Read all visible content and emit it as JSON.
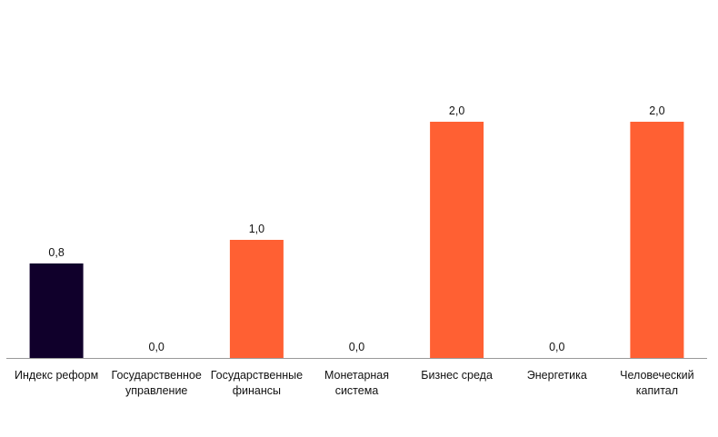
{
  "chart_data": {
    "type": "bar",
    "title": "",
    "xlabel": "",
    "ylabel": "",
    "categories": [
      [
        "Индекс реформ"
      ],
      [
        "Государственное",
        "управление"
      ],
      [
        "Государственные",
        "финансы"
      ],
      [
        "Монетарная",
        "система"
      ],
      [
        "Бизнес среда"
      ],
      [
        "Энергетика"
      ],
      [
        "Человеческий",
        "капитал"
      ]
    ],
    "values": [
      0.8,
      0.0,
      1.0,
      0.0,
      2.0,
      0.0,
      2.0
    ],
    "value_labels": [
      "0,8",
      "0,0",
      "1,0",
      "0,0",
      "2,0",
      "0,0",
      "2,0"
    ],
    "ylim": [
      0,
      2.0
    ],
    "colors": [
      "#10002b",
      "#ff6033",
      "#ff6033",
      "#ff6033",
      "#ff6033",
      "#ff6033",
      "#ff6033"
    ],
    "axis_color": "#999999",
    "grid": false,
    "legend": "none"
  }
}
